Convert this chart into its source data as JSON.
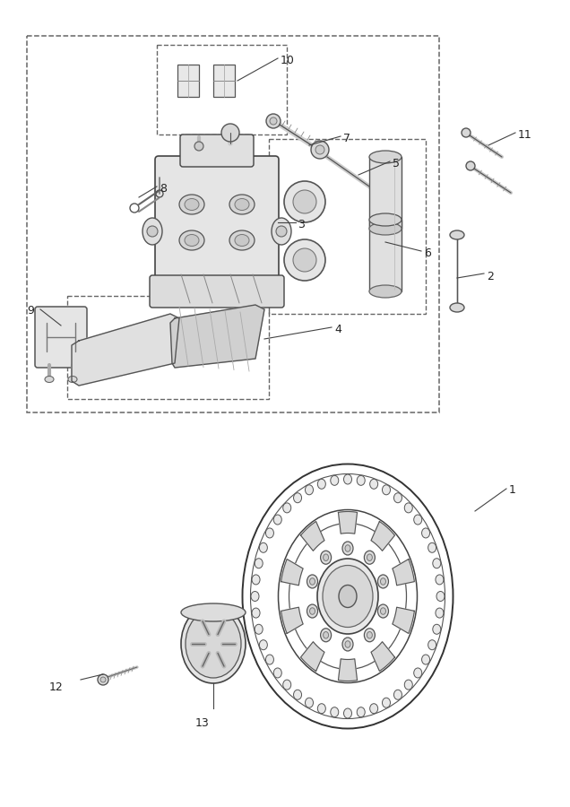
{
  "bg_color": "#ffffff",
  "line_color": "#333333",
  "dash_rect_color": "#666666",
  "label_color": "#222222",
  "fig_width": 6.36,
  "fig_height": 9.0,
  "dpi": 100
}
